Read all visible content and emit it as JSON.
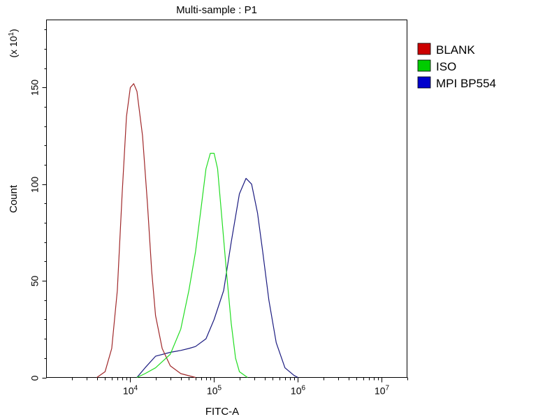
{
  "chart_data": {
    "type": "line",
    "title": "Multi-sample : P1",
    "xlabel": "FITC-A",
    "ylabel": "Count",
    "y_multiplier_label": "(x 10",
    "y_multiplier_exp": "1",
    "x_scale": "log",
    "xlim": [
      1000,
      20000000
    ],
    "ylim": [
      0,
      185
    ],
    "x_ticks": [
      {
        "value": 10000,
        "base": "10",
        "exp": "4"
      },
      {
        "value": 100000,
        "base": "10",
        "exp": "5"
      },
      {
        "value": 1000000,
        "base": "10",
        "exp": "6"
      },
      {
        "value": 10000000,
        "base": "10",
        "exp": "7"
      }
    ],
    "y_ticks": [
      {
        "value": 0,
        "label": "0"
      },
      {
        "value": 50,
        "label": "50"
      },
      {
        "value": 100,
        "label": "100"
      },
      {
        "value": 150,
        "label": "150"
      }
    ],
    "legend_position": "right",
    "grid": false,
    "series": [
      {
        "name": "BLANK",
        "color": "#cc0000",
        "line_color": "#a0282a",
        "points": [
          [
            4000,
            0
          ],
          [
            5000,
            3
          ],
          [
            6000,
            15
          ],
          [
            7000,
            45
          ],
          [
            8000,
            95
          ],
          [
            9000,
            135
          ],
          [
            10000,
            150
          ],
          [
            11000,
            152
          ],
          [
            12000,
            148
          ],
          [
            14000,
            125
          ],
          [
            16000,
            90
          ],
          [
            18000,
            55
          ],
          [
            20000,
            32
          ],
          [
            24000,
            15
          ],
          [
            30000,
            6
          ],
          [
            40000,
            2
          ],
          [
            60000,
            0
          ]
        ]
      },
      {
        "name": "ISO",
        "color": "#00cc00",
        "line_color": "#22dd22",
        "points": [
          [
            12000,
            0
          ],
          [
            15000,
            2
          ],
          [
            20000,
            5
          ],
          [
            30000,
            12
          ],
          [
            40000,
            25
          ],
          [
            50000,
            45
          ],
          [
            60000,
            65
          ],
          [
            70000,
            88
          ],
          [
            80000,
            108
          ],
          [
            90000,
            116
          ],
          [
            100000,
            116
          ],
          [
            110000,
            108
          ],
          [
            125000,
            80
          ],
          [
            140000,
            55
          ],
          [
            160000,
            28
          ],
          [
            180000,
            10
          ],
          [
            200000,
            3
          ],
          [
            250000,
            0
          ]
        ]
      },
      {
        "name": "MPI BP554",
        "color": "#0000cc",
        "line_color": "#1b1b80",
        "points": [
          [
            12000,
            0
          ],
          [
            15000,
            5
          ],
          [
            20000,
            11
          ],
          [
            30000,
            13
          ],
          [
            40000,
            14
          ],
          [
            50000,
            15
          ],
          [
            60000,
            16
          ],
          [
            80000,
            20
          ],
          [
            100000,
            30
          ],
          [
            130000,
            45
          ],
          [
            160000,
            70
          ],
          [
            200000,
            95
          ],
          [
            240000,
            103
          ],
          [
            280000,
            100
          ],
          [
            330000,
            85
          ],
          [
            380000,
            65
          ],
          [
            450000,
            40
          ],
          [
            550000,
            18
          ],
          [
            700000,
            5
          ],
          [
            900000,
            1
          ],
          [
            1000000,
            0
          ]
        ]
      }
    ]
  }
}
